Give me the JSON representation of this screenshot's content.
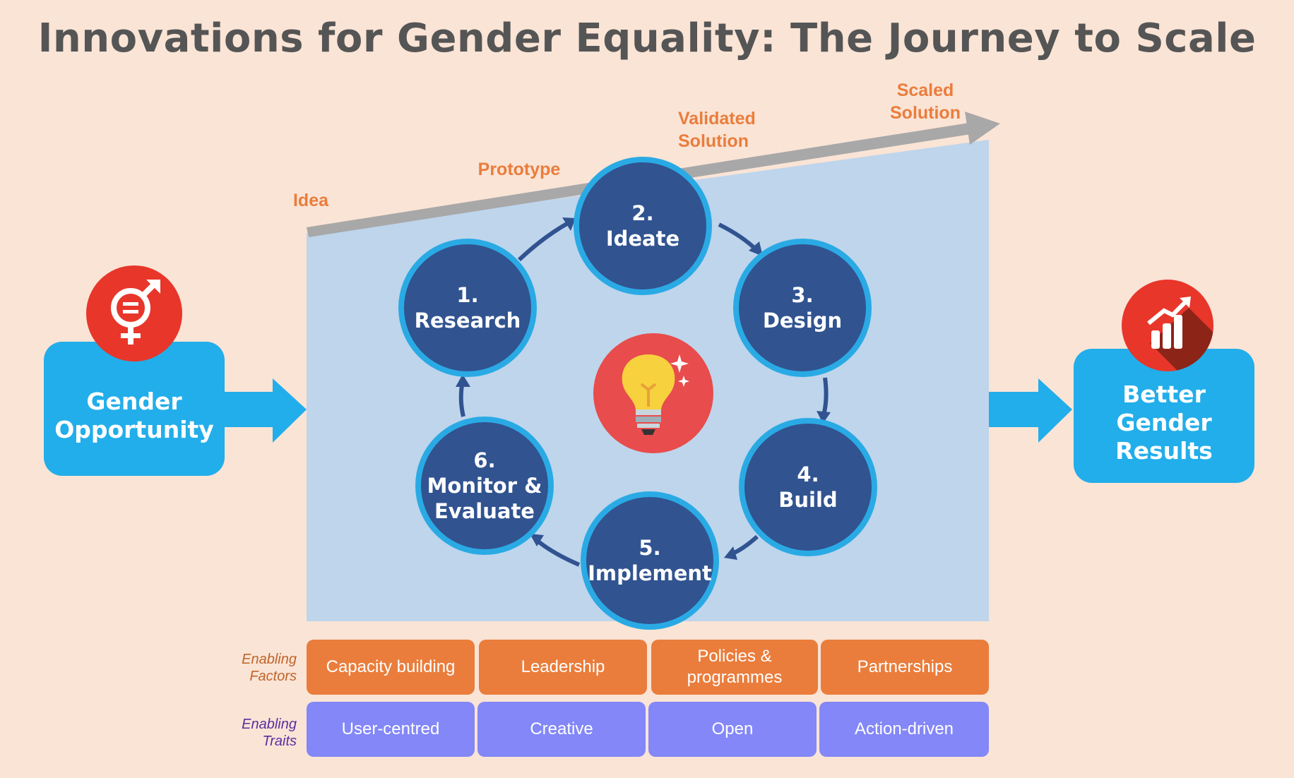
{
  "title": "Innovations for Gender Equality: The Journey to Scale",
  "stages": {
    "idea": "Idea",
    "prototype": "Prototype",
    "validated": "Validated\nSolution",
    "scaled": "Scaled\nSolution"
  },
  "left_box": {
    "label": "Gender\nOpportunity",
    "icon": "gender-equality-icon"
  },
  "right_box": {
    "label": "Better\nGender\nResults",
    "icon": "bar-chart-growth-icon"
  },
  "center_icon": "lightbulb-icon",
  "steps": [
    {
      "label": "1.\nResearch"
    },
    {
      "label": "2.\nIdeate"
    },
    {
      "label": "3.\nDesign"
    },
    {
      "label": "4.\nBuild"
    },
    {
      "label": "5.\nImplement"
    },
    {
      "label": "6.\nMonitor &\nEvaluate"
    }
  ],
  "factors": {
    "label": "Enabling\nFactors",
    "items": [
      "Capacity building",
      "Leadership",
      "Policies &\nprogrammes",
      "Partnerships"
    ]
  },
  "traits": {
    "label": "Enabling\nTraits",
    "items": [
      "User-centred",
      "Creative",
      "Open",
      "Action-driven"
    ]
  },
  "colors": {
    "background": "#fae4d6",
    "panel": "#bed5ec",
    "step_fill": "#315390",
    "step_ring": "#2aaae4",
    "accent_orange": "#ea7d3c",
    "trait_purple": "#8387f8",
    "side_blue": "#22aeea",
    "icon_red": "#e8362a"
  }
}
